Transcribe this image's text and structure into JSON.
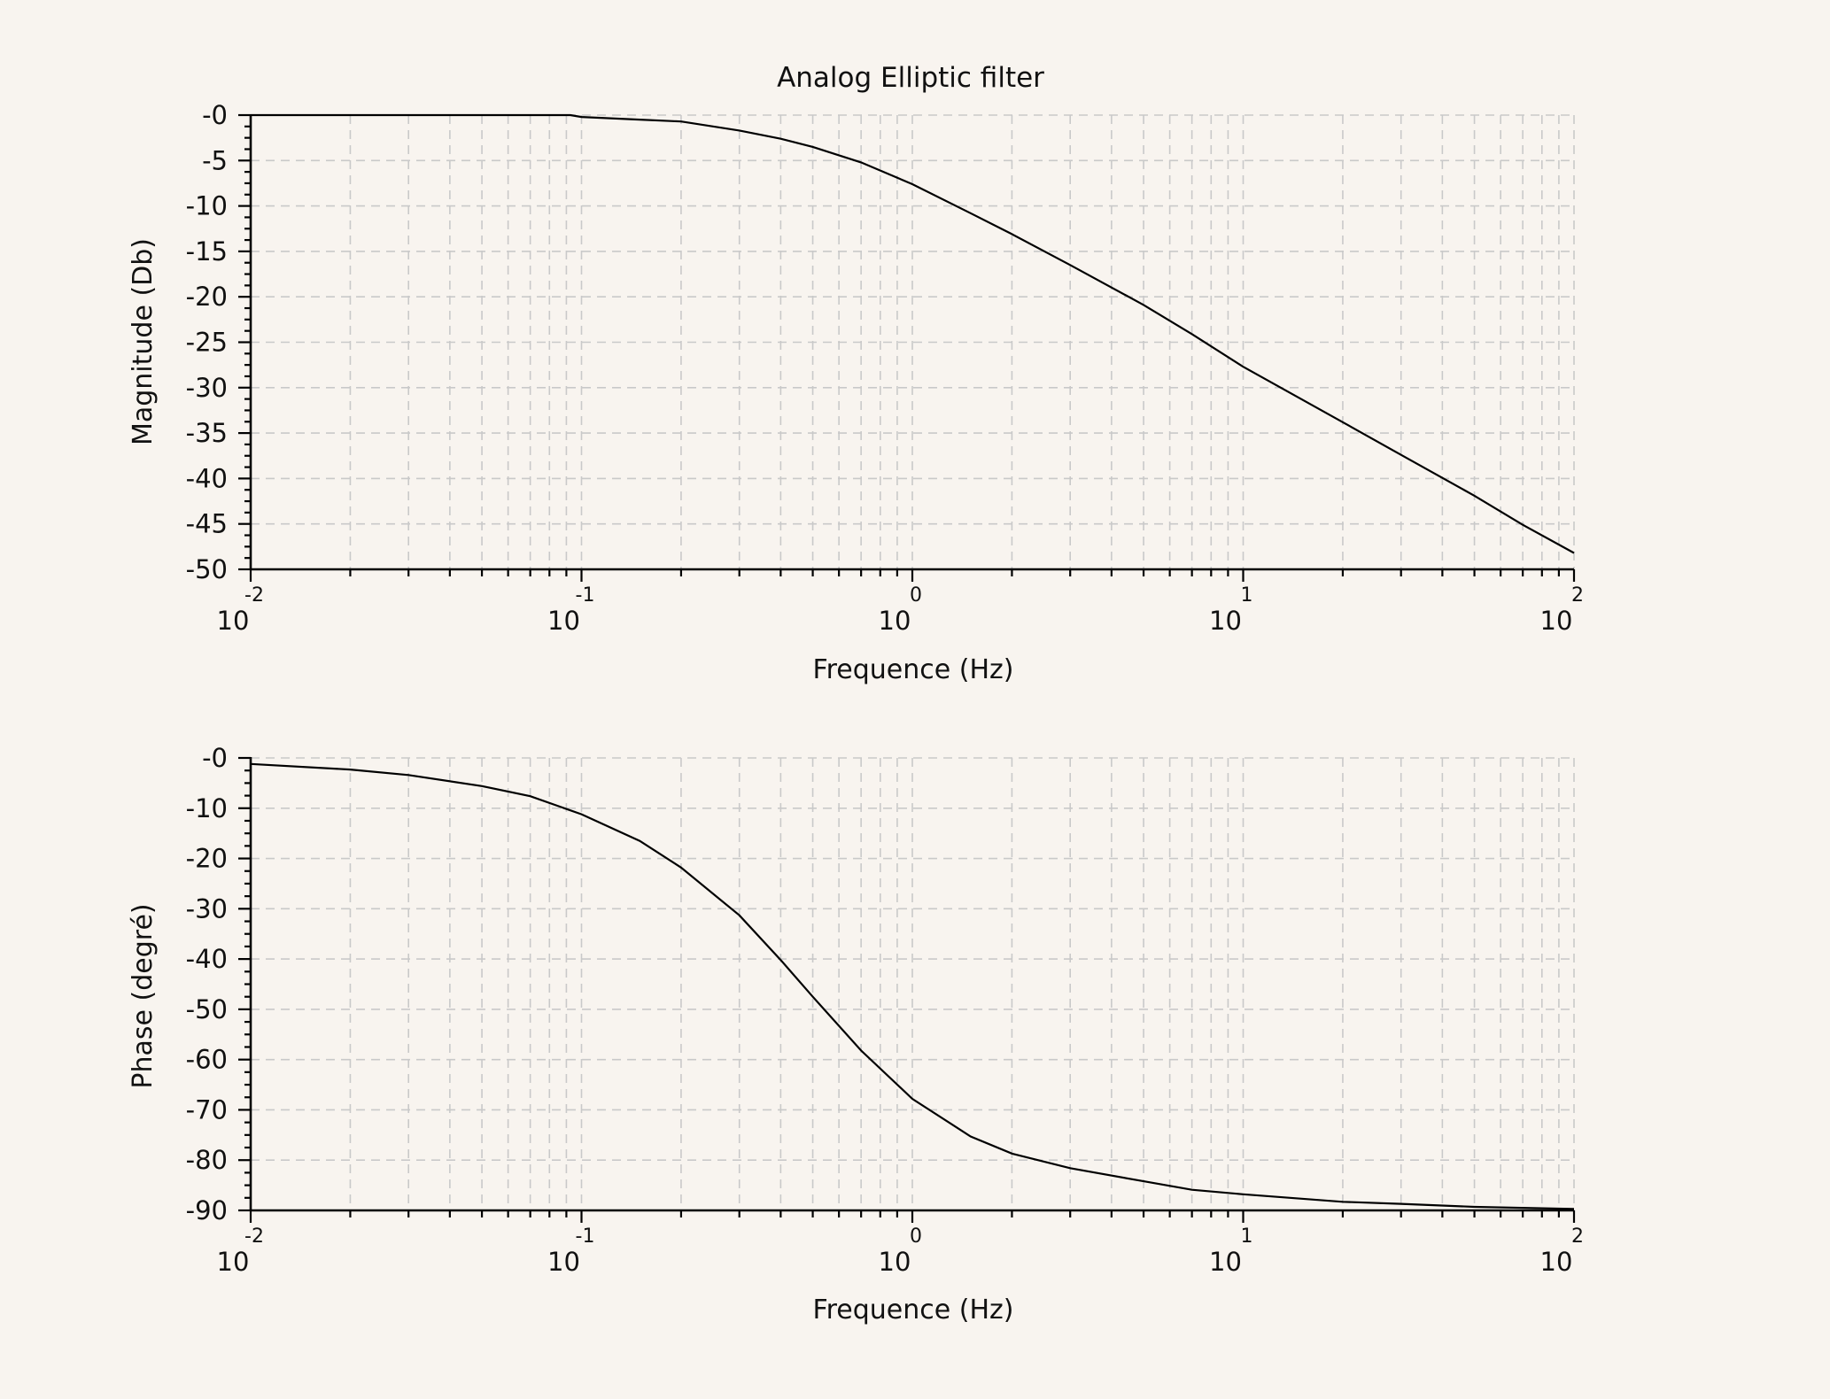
{
  "chart_data": [
    {
      "type": "line",
      "title": "Analog Elliptic filter",
      "xlabel": "Frequence (Hz)",
      "ylabel": "Magnitude (Db)",
      "xscale": "log",
      "xlim": [
        0.01,
        100
      ],
      "ylim": [
        -50,
        0
      ],
      "grid": true,
      "x_ticks": [
        {
          "base": "10",
          "exp": "-2"
        },
        {
          "base": "10",
          "exp": "-1"
        },
        {
          "base": "10",
          "exp": "0"
        },
        {
          "base": "10",
          "exp": "1"
        },
        {
          "base": "10",
          "exp": "2"
        }
      ],
      "y_ticks": [
        "-0",
        "-5",
        "-10",
        "-15",
        "-20",
        "-25",
        "-30",
        "-35",
        "-40",
        "-45",
        "-50"
      ],
      "y_tick_values": [
        0,
        -5,
        -10,
        -15,
        -20,
        -25,
        -30,
        -35,
        -40,
        -45,
        -50
      ],
      "series": [
        {
          "x": [
            0.01,
            0.02,
            0.05,
            0.0925,
            0.1,
            0.15,
            0.2,
            0.3,
            0.4,
            0.5,
            0.7,
            1,
            1.5,
            2,
            3,
            5,
            7,
            10,
            20,
            30,
            50,
            70,
            100
          ],
          "y": [
            0,
            0,
            0,
            0,
            -0.2,
            -0.5,
            -0.7,
            -1.7,
            -2.6,
            -3.5,
            -5.2,
            -7.6,
            -10.8,
            -13.1,
            -16.5,
            -20.9,
            -24.1,
            -27.7,
            -33.8,
            -37.4,
            -41.9,
            -45.1,
            -48.2
          ]
        }
      ]
    },
    {
      "type": "line",
      "title": "",
      "xlabel": "Frequence (Hz)",
      "ylabel": "Phase (degré)",
      "xscale": "log",
      "xlim": [
        0.01,
        100
      ],
      "ylim": [
        -90,
        0
      ],
      "grid": true,
      "x_ticks": [
        {
          "base": "10",
          "exp": "-2"
        },
        {
          "base": "10",
          "exp": "-1"
        },
        {
          "base": "10",
          "exp": "0"
        },
        {
          "base": "10",
          "exp": "1"
        },
        {
          "base": "10",
          "exp": "2"
        }
      ],
      "y_ticks": [
        "-0",
        "-10",
        "-20",
        "-30",
        "-40",
        "-50",
        "-60",
        "-70",
        "-80",
        "-90"
      ],
      "y_tick_values": [
        0,
        -10,
        -20,
        -30,
        -40,
        -50,
        -60,
        -70,
        -80,
        -90
      ],
      "series": [
        {
          "x": [
            0.01,
            0.02,
            0.03,
            0.05,
            0.07,
            0.1,
            0.15,
            0.2,
            0.3,
            0.4,
            0.5,
            0.7,
            1,
            1.5,
            2,
            3,
            5,
            7,
            10,
            20,
            30,
            50,
            100
          ],
          "y": [
            -1.2,
            -2.3,
            -3.4,
            -5.6,
            -7.6,
            -11.2,
            -16.5,
            -21.8,
            -31.3,
            -40.2,
            -47.5,
            -58.2,
            -67.8,
            -75.3,
            -78.7,
            -81.6,
            -84.2,
            -85.9,
            -86.8,
            -88.3,
            -88.7,
            -89.3,
            -89.7
          ]
        }
      ]
    }
  ]
}
